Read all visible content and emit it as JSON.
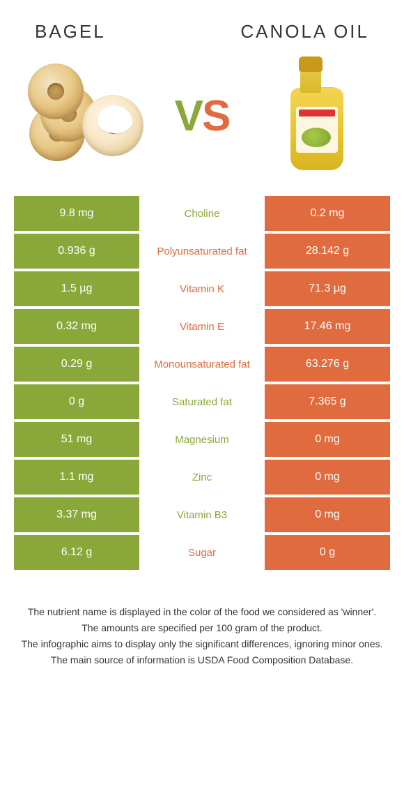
{
  "colors": {
    "bagel_bg": "#8aa83a",
    "canola_bg": "#e06b3f",
    "cell_text": "#ffffff",
    "winner_bagel_text": "#8aa83a",
    "winner_canola_text": "#e06b3f"
  },
  "header": {
    "left": "BAGEL",
    "right": "CANOLA OIL",
    "vs_v": "V",
    "vs_s": "S"
  },
  "rows": [
    {
      "left": "9.8 mg",
      "label": "Choline",
      "right": "0.2 mg",
      "winner": "bagel"
    },
    {
      "left": "0.936 g",
      "label": "Polyunsaturated fat",
      "right": "28.142 g",
      "winner": "canola"
    },
    {
      "left": "1.5 µg",
      "label": "Vitamin K",
      "right": "71.3 µg",
      "winner": "canola"
    },
    {
      "left": "0.32 mg",
      "label": "Vitamin E",
      "right": "17.46 mg",
      "winner": "canola"
    },
    {
      "left": "0.29 g",
      "label": "Monounsaturated fat",
      "right": "63.276 g",
      "winner": "canola"
    },
    {
      "left": "0 g",
      "label": "Saturated fat",
      "right": "7.365 g",
      "winner": "bagel"
    },
    {
      "left": "51 mg",
      "label": "Magnesium",
      "right": "0 mg",
      "winner": "bagel"
    },
    {
      "left": "1.1 mg",
      "label": "Zinc",
      "right": "0 mg",
      "winner": "bagel"
    },
    {
      "left": "3.37 mg",
      "label": "Vitamin B3",
      "right": "0 mg",
      "winner": "bagel"
    },
    {
      "left": "6.12 g",
      "label": "Sugar",
      "right": "0 g",
      "winner": "canola"
    }
  ],
  "footnotes": [
    "The nutrient name is displayed in the color of the food we considered as 'winner'.",
    "The amounts are specified per 100 gram of the product.",
    "The infographic aims to display only the significant differences, ignoring minor ones.",
    "The main source of information is USDA Food Composition Database."
  ]
}
